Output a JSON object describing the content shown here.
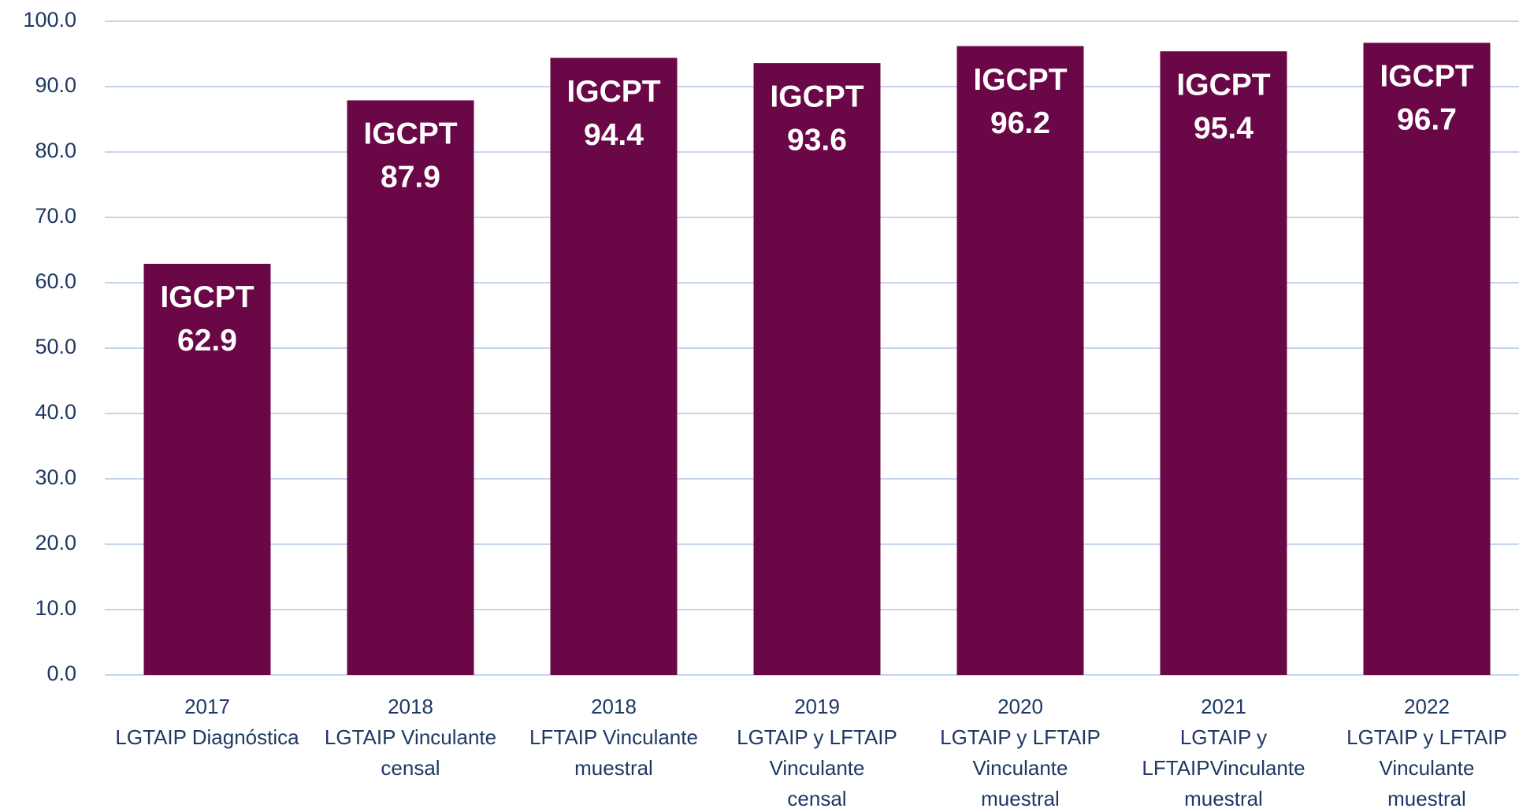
{
  "chart_data": {
    "type": "bar",
    "categories": [
      [
        "2017",
        "LGTAIP Diagnóstica"
      ],
      [
        "2018",
        "LGTAIP Vinculante",
        "censal"
      ],
      [
        "2018",
        "LFTAIP Vinculante",
        "muestral"
      ],
      [
        "2019",
        "LGTAIP y LFTAIP",
        "Vinculante",
        "censal"
      ],
      [
        "2020",
        "LGTAIP y LFTAIP",
        "Vinculante",
        "muestral"
      ],
      [
        "2021",
        "LGTAIP y",
        "LFTAIPVinculante",
        "muestral"
      ],
      [
        "2022",
        "LGTAIP y LFTAIP",
        "Vinculante",
        "muestral"
      ]
    ],
    "values": [
      62.9,
      87.9,
      94.4,
      93.6,
      96.2,
      95.4,
      96.7
    ],
    "data_label": "IGCPT",
    "color": "#6a0746",
    "ylim": [
      0,
      100
    ],
    "yticks": [
      {
        "value": 0,
        "label": "0.0"
      },
      {
        "value": 10,
        "label": "10.0"
      },
      {
        "value": 20,
        "label": "20.0"
      },
      {
        "value": 30,
        "label": "30.0"
      },
      {
        "value": 40,
        "label": "40.0"
      },
      {
        "value": 50,
        "label": "50.0"
      },
      {
        "value": 60,
        "label": "60.0"
      },
      {
        "value": 70,
        "label": "70.0"
      },
      {
        "value": 80,
        "label": "80.0"
      },
      {
        "value": 90,
        "label": "90.0"
      },
      {
        "value": 100,
        "label": "100.0"
      }
    ],
    "grid": true
  }
}
